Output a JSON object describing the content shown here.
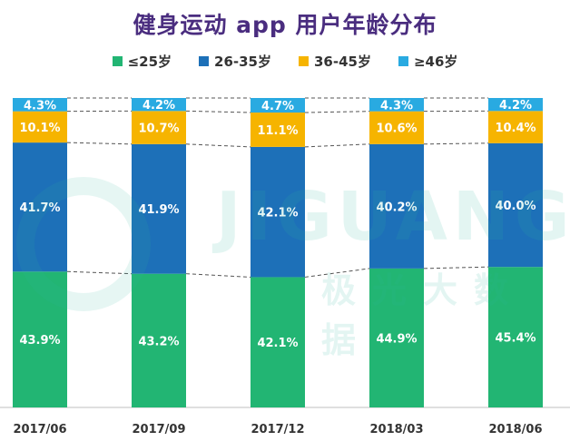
{
  "chart_data": {
    "type": "bar",
    "stacked": true,
    "percent": true,
    "title": "健身运动 app 用户年龄分布",
    "categories": [
      "2017/06",
      "2017/09",
      "2017/12",
      "2018/03",
      "2018/06"
    ],
    "series": [
      {
        "name": "≤25岁",
        "color": "#22b573",
        "values": [
          43.9,
          43.2,
          42.1,
          44.9,
          45.4
        ],
        "labels": [
          "43.9%",
          "43.2%",
          "42.1%",
          "44.9%",
          "45.4%"
        ]
      },
      {
        "name": "26-35岁",
        "color": "#1d70b8",
        "values": [
          41.7,
          41.9,
          42.1,
          40.2,
          40.0
        ],
        "labels": [
          "41.7%",
          "41.9%",
          "42.1%",
          "40.2%",
          "40.0%"
        ]
      },
      {
        "name": "36-45岁",
        "color": "#f6b400",
        "values": [
          10.1,
          10.7,
          11.1,
          10.6,
          10.4
        ],
        "labels": [
          "10.1%",
          "10.7%",
          "11.1%",
          "10.6%",
          "10.4%"
        ]
      },
      {
        "name": "≥46岁",
        "color": "#29aae1",
        "values": [
          4.3,
          4.2,
          4.7,
          4.3,
          4.2
        ],
        "labels": [
          "4.3%",
          "4.2%",
          "4.7%",
          "4.3%",
          "4.2%"
        ]
      }
    ],
    "ylim": [
      0,
      100
    ],
    "legend_position": "top"
  },
  "watermark": {
    "text_en": "JIGUANG",
    "text_cn": "极光大数据"
  }
}
